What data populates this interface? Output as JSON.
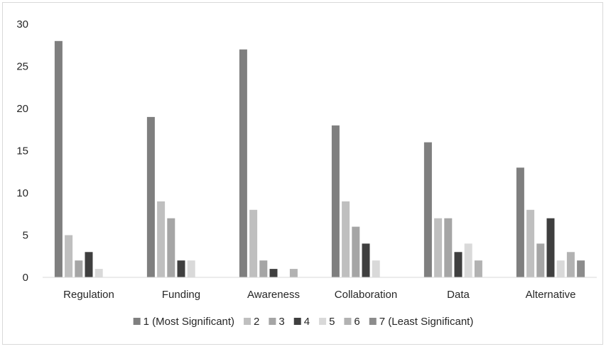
{
  "chart_data": {
    "type": "bar",
    "title": "",
    "xlabel": "",
    "ylabel": "",
    "ylim": [
      0,
      30
    ],
    "yticks": [
      0,
      5,
      10,
      15,
      20,
      25,
      30
    ],
    "grid": false,
    "legend_position": "bottom",
    "categories": [
      "Regulation",
      "Funding",
      "Awareness",
      "Collaboration",
      "Data",
      "Alternative"
    ],
    "series": [
      {
        "name": "1 (Most Significant)",
        "color": "#7f7f7f",
        "values": [
          28,
          19,
          27,
          18,
          16,
          13
        ]
      },
      {
        "name": "2",
        "color": "#bfbfbf",
        "values": [
          5,
          9,
          8,
          9,
          7,
          8
        ]
      },
      {
        "name": "3",
        "color": "#a5a5a5",
        "values": [
          2,
          7,
          2,
          6,
          7,
          4
        ]
      },
      {
        "name": "4",
        "color": "#3f3f3f",
        "values": [
          3,
          2,
          1,
          4,
          3,
          7
        ]
      },
      {
        "name": "5",
        "color": "#d9d9d9",
        "values": [
          1,
          2,
          0,
          2,
          4,
          2
        ]
      },
      {
        "name": "6",
        "color": "#b2b2b2",
        "values": [
          0,
          0,
          1,
          0,
          2,
          3
        ]
      },
      {
        "name": "7 (Least Significant)",
        "color": "#8c8c8c",
        "values": [
          0,
          0,
          0,
          0,
          0,
          2
        ]
      }
    ]
  }
}
